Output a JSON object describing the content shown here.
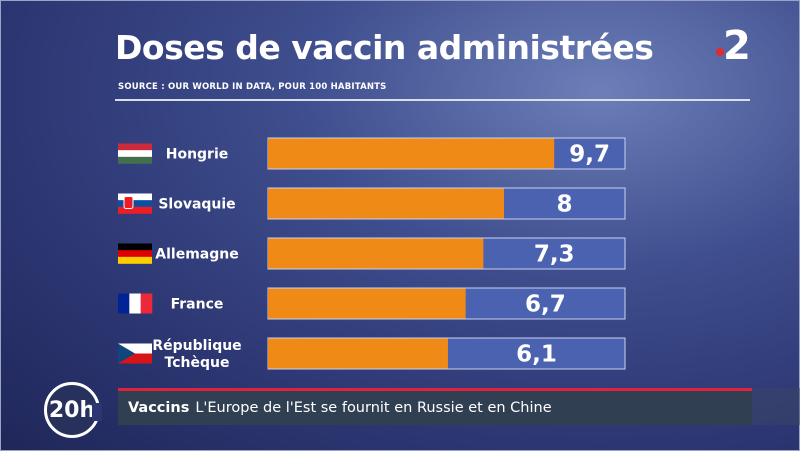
{
  "header": {
    "title": "Doses de vaccin administrées",
    "source": "SOURCE : OUR WORLD IN DATA, POUR 100 HABITANTS",
    "channel_logo": "2"
  },
  "chart_data": {
    "type": "bar",
    "orientation": "horizontal",
    "title": "Doses de vaccin administrées",
    "subtitle": "SOURCE : OUR WORLD IN DATA, POUR 100 HABITANTS",
    "categories": [
      "Hongrie",
      "Slovaquie",
      "Allemagne",
      "France",
      "République Tchèque"
    ],
    "category_lines": [
      [
        "Hongrie"
      ],
      [
        "Slovaquie"
      ],
      [
        "Allemagne"
      ],
      [
        "France"
      ],
      [
        "République",
        "Tchèque"
      ]
    ],
    "flags": [
      "hungary-flag-icon",
      "slovakia-flag-icon",
      "germany-flag-icon",
      "france-flag-icon",
      "czech-flag-icon"
    ],
    "values": [
      9.7,
      8,
      7.3,
      6.7,
      6.1
    ],
    "value_labels": [
      "9,7",
      "8",
      "7,3",
      "6,7",
      "6,1"
    ],
    "xlim": [
      0,
      12.1
    ],
    "colors": {
      "bar": "#ef8a17",
      "track": "#4a62b0",
      "track_border": "#c9d2f0"
    }
  },
  "ticker": {
    "badge": "20h",
    "keyword": "Vaccins",
    "headline": "L'Europe de l'Est se fournit en Russie et en Chine"
  }
}
